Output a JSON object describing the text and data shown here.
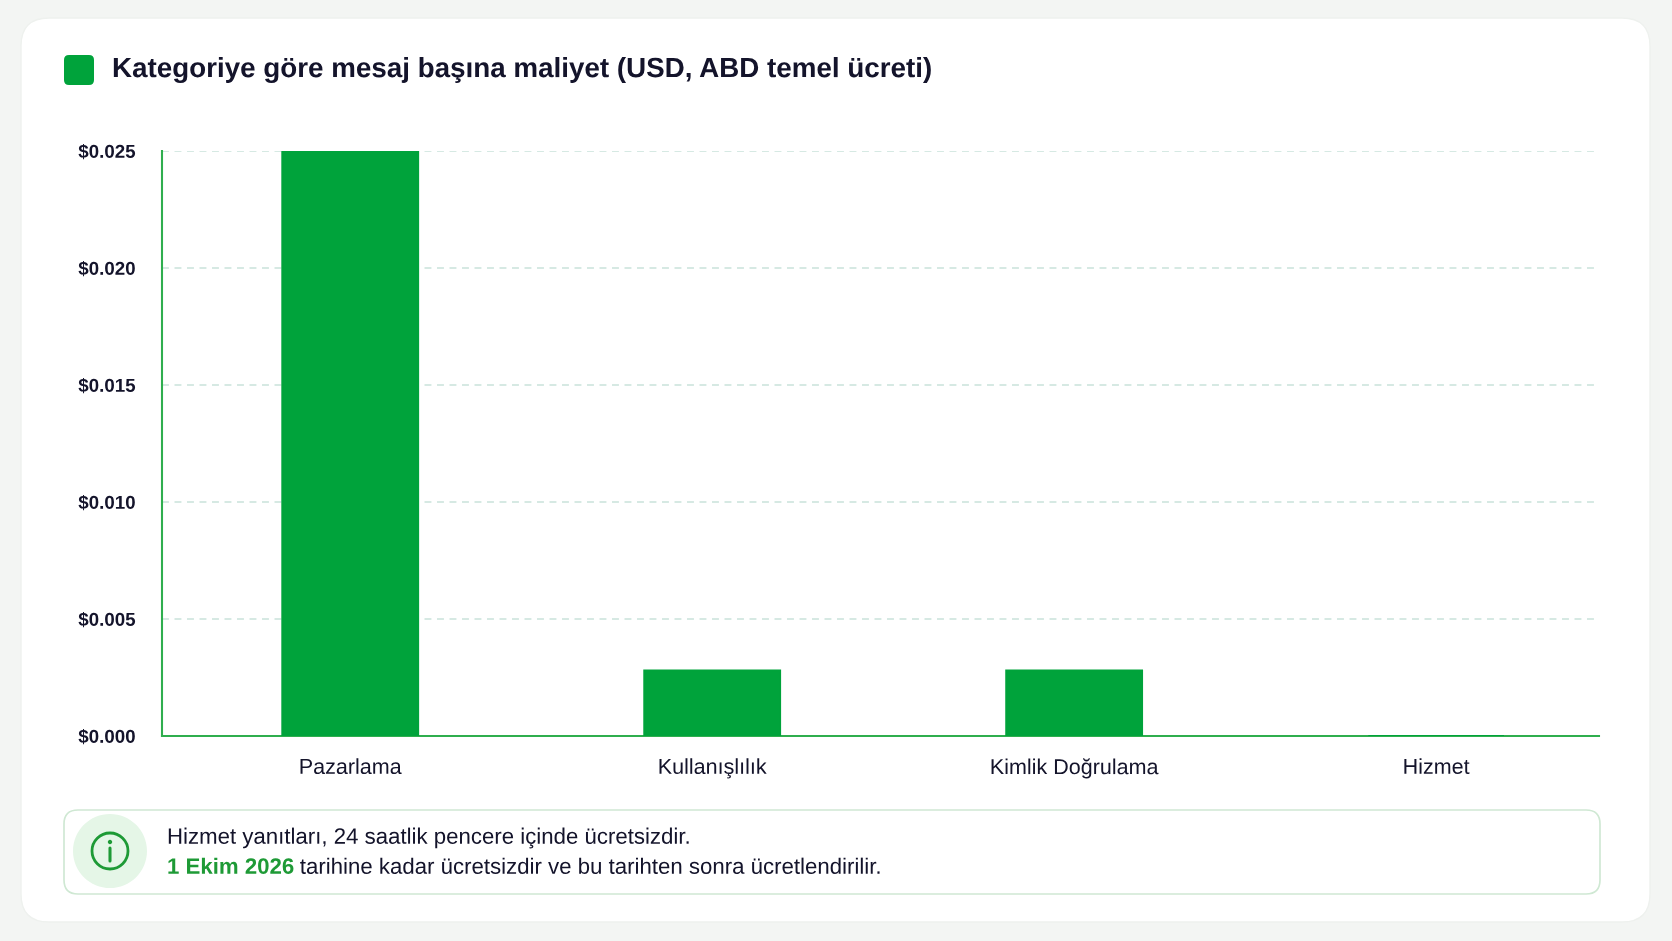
{
  "chart_data": {
    "type": "bar",
    "title": "Kategoriye göre mesaj başına maliyet (USD, ABD temel ücreti)",
    "categories": [
      "Pazarlama",
      "Kullanışlılık",
      "Kimlik Doğrulama",
      "Hizmet"
    ],
    "values": [
      0.025,
      0.0028,
      0.0028,
      0
    ],
    "color": "#00a33b",
    "ylim": [
      0,
      0.025
    ],
    "yticks": [
      {
        "value": 0,
        "label": "$0.000"
      },
      {
        "value": 0.005,
        "label": "$0.005"
      },
      {
        "value": 0.01,
        "label": "$0.010"
      },
      {
        "value": 0.015,
        "label": "$0.015"
      },
      {
        "value": 0.02,
        "label": "$0.020"
      },
      {
        "value": 0.025,
        "label": "$0.025"
      }
    ],
    "grid": "y",
    "annotations": [
      "Hizmet yanıtları, 24 saatlik pencere içinde ücretsizdir.",
      "1 Ekim 2026",
      "tarihine kadar ücretsizdir ve bu tarihten sonra ücretlendirilir."
    ]
  }
}
